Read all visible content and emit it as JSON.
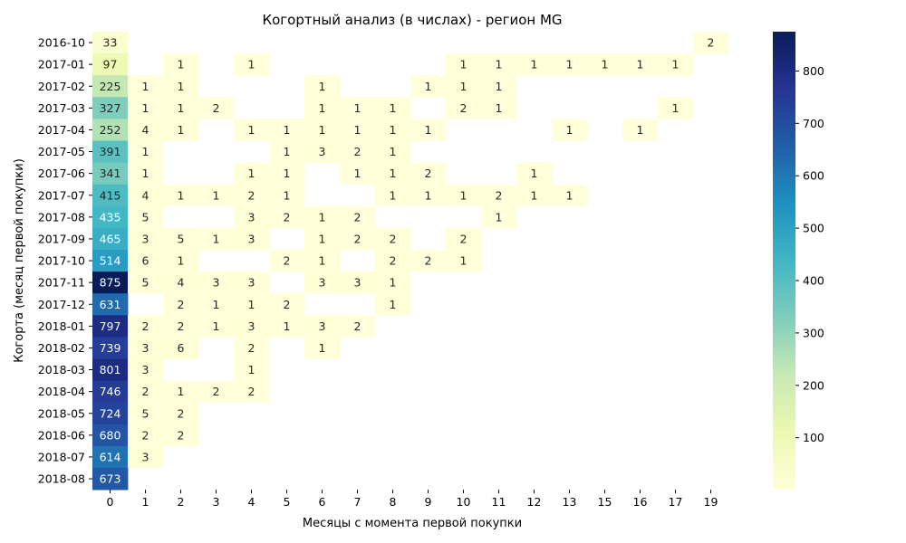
{
  "chart_data": {
    "type": "heatmap",
    "title": "Когортный анализ (в числах) - регион MG",
    "xlabel": "Месяцы с момента первой покупки",
    "ylabel": "Когорта (месяц первой покупки)",
    "x_categories": [
      "0",
      "1",
      "2",
      "3",
      "4",
      "5",
      "6",
      "7",
      "8",
      "9",
      "10",
      "11",
      "12",
      "13",
      "15",
      "16",
      "17",
      "19"
    ],
    "y_categories": [
      "2016-10",
      "2017-01",
      "2017-02",
      "2017-03",
      "2017-04",
      "2017-05",
      "2017-06",
      "2017-07",
      "2017-08",
      "2017-09",
      "2017-10",
      "2017-11",
      "2017-12",
      "2018-01",
      "2018-02",
      "2018-03",
      "2018-04",
      "2018-05",
      "2018-06",
      "2018-07",
      "2018-08"
    ],
    "values": [
      [
        33,
        null,
        null,
        null,
        null,
        null,
        null,
        null,
        null,
        null,
        null,
        null,
        null,
        null,
        null,
        null,
        null,
        2
      ],
      [
        97,
        null,
        1,
        null,
        1,
        null,
        null,
        null,
        null,
        null,
        1,
        1,
        1,
        1,
        1,
        1,
        1,
        null
      ],
      [
        225,
        1,
        1,
        null,
        null,
        null,
        1,
        null,
        null,
        1,
        1,
        1,
        null,
        null,
        null,
        null,
        null,
        null
      ],
      [
        327,
        1,
        1,
        2,
        null,
        null,
        1,
        1,
        1,
        null,
        2,
        1,
        null,
        null,
        null,
        null,
        1,
        null
      ],
      [
        252,
        4,
        1,
        null,
        1,
        1,
        1,
        1,
        1,
        1,
        null,
        null,
        null,
        1,
        null,
        1,
        null,
        null
      ],
      [
        391,
        1,
        null,
        null,
        null,
        1,
        3,
        2,
        1,
        null,
        null,
        null,
        null,
        null,
        null,
        null,
        null,
        null
      ],
      [
        341,
        1,
        null,
        null,
        1,
        1,
        null,
        1,
        1,
        2,
        null,
        null,
        1,
        null,
        null,
        null,
        null,
        null
      ],
      [
        415,
        4,
        1,
        1,
        2,
        1,
        null,
        null,
        1,
        1,
        1,
        2,
        1,
        1,
        null,
        null,
        null,
        null
      ],
      [
        435,
        5,
        null,
        null,
        3,
        2,
        1,
        2,
        null,
        null,
        null,
        1,
        null,
        null,
        null,
        null,
        null,
        null
      ],
      [
        465,
        3,
        5,
        1,
        3,
        null,
        1,
        2,
        2,
        null,
        2,
        null,
        null,
        null,
        null,
        null,
        null,
        null
      ],
      [
        514,
        6,
        1,
        null,
        null,
        2,
        1,
        null,
        2,
        2,
        1,
        null,
        null,
        null,
        null,
        null,
        null,
        null
      ],
      [
        875,
        5,
        4,
        3,
        3,
        null,
        3,
        3,
        1,
        null,
        null,
        null,
        null,
        null,
        null,
        null,
        null,
        null
      ],
      [
        631,
        null,
        2,
        1,
        1,
        2,
        null,
        null,
        1,
        null,
        null,
        null,
        null,
        null,
        null,
        null,
        null,
        null
      ],
      [
        797,
        2,
        2,
        1,
        3,
        1,
        3,
        2,
        null,
        null,
        null,
        null,
        null,
        null,
        null,
        null,
        null,
        null
      ],
      [
        739,
        3,
        6,
        null,
        2,
        null,
        1,
        null,
        null,
        null,
        null,
        null,
        null,
        null,
        null,
        null,
        null,
        null
      ],
      [
        801,
        3,
        null,
        null,
        1,
        null,
        null,
        null,
        null,
        null,
        null,
        null,
        null,
        null,
        null,
        null,
        null,
        null
      ],
      [
        746,
        2,
        1,
        2,
        2,
        null,
        null,
        null,
        null,
        null,
        null,
        null,
        null,
        null,
        null,
        null,
        null,
        null
      ],
      [
        724,
        5,
        2,
        null,
        null,
        null,
        null,
        null,
        null,
        null,
        null,
        null,
        null,
        null,
        null,
        null,
        null,
        null
      ],
      [
        680,
        2,
        2,
        null,
        null,
        null,
        null,
        null,
        null,
        null,
        null,
        null,
        null,
        null,
        null,
        null,
        null,
        null
      ],
      [
        614,
        3,
        null,
        null,
        null,
        null,
        null,
        null,
        null,
        null,
        null,
        null,
        null,
        null,
        null,
        null,
        null,
        null
      ],
      [
        673,
        null,
        null,
        null,
        null,
        null,
        null,
        null,
        null,
        null,
        null,
        null,
        null,
        null,
        null,
        null,
        null,
        null
      ]
    ],
    "colorbar_ticks": [
      100,
      200,
      300,
      400,
      500,
      600,
      700,
      800
    ],
    "color_range": [
      1,
      875
    ],
    "colormap": "YlGnBu",
    "colormap_stops": [
      "#ffffd9",
      "#edf8b1",
      "#c7e9b4",
      "#7fcdbb",
      "#41b6c4",
      "#1d91c0",
      "#225ea8",
      "#253494",
      "#081d58"
    ]
  }
}
